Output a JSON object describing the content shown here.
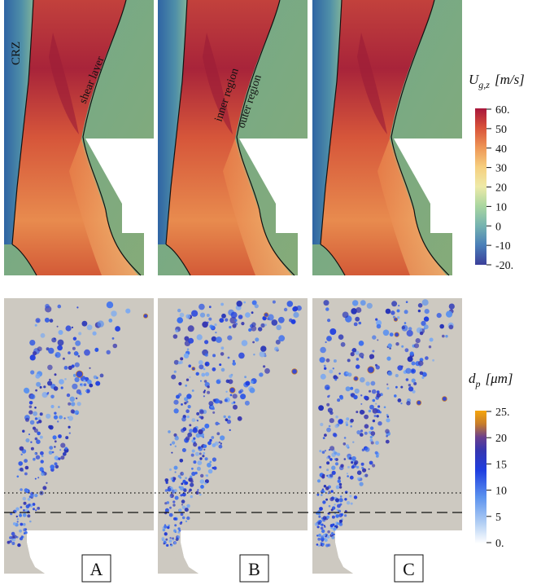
{
  "top_annotations": {
    "crz": "CRZ",
    "shear_layer": "shear layer",
    "inner_region": "inner region",
    "outer_region": "outer region"
  },
  "velocity_colorbar": {
    "title_symbol": "U",
    "title_subscript": "g,z",
    "title_units": "[m/s]",
    "ticks": [
      "60.",
      "50",
      "40",
      "30",
      "20",
      "10",
      "0",
      "-10",
      "-20."
    ],
    "colors": [
      "#3b3f9a",
      "#4a7fb8",
      "#76b3b0",
      "#a9d6a0",
      "#eeeaa8",
      "#f6cf7f",
      "#ee9656",
      "#d9533a",
      "#a8173b"
    ]
  },
  "diameter_colorbar": {
    "title_symbol": "d",
    "title_subscript": "p",
    "title_units": "[μm]",
    "ticks": [
      "25.",
      "20",
      "15",
      "10",
      "5",
      "0."
    ],
    "colors": [
      "#ffffff",
      "#b4d0f4",
      "#5b92ee",
      "#1f3ee0",
      "#3636b0",
      "#6a3f8e",
      "#c77d2b",
      "#f5a50c"
    ]
  },
  "panel_labels": [
    "A",
    "B",
    "C"
  ],
  "field_colors": {
    "crz": "#3f74a6",
    "outer": "#77a07c",
    "inner": "#a8243a",
    "jet": "#e0703c",
    "mid": "#efb46d",
    "background": "#cdc9c1"
  }
}
